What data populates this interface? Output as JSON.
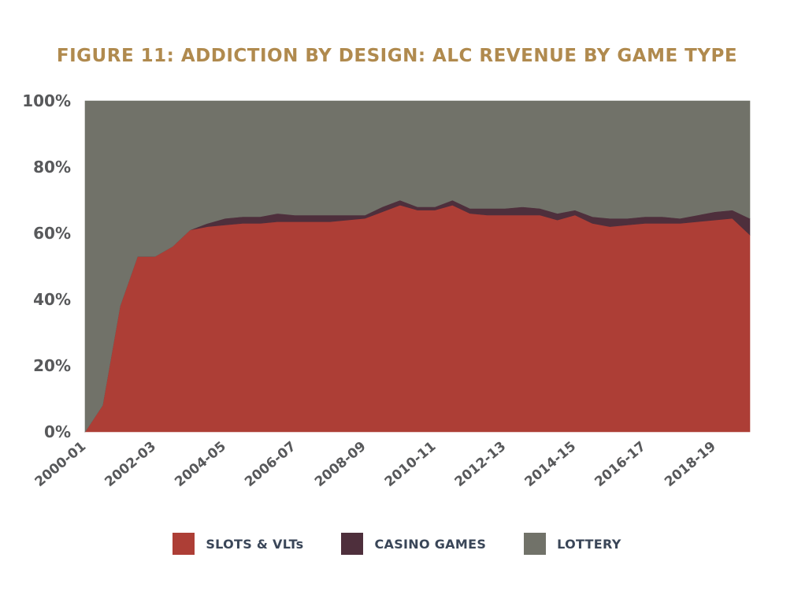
{
  "chart_data": {
    "type": "area",
    "stacked": true,
    "title": "FIGURE 11: ADDICTION BY DESIGN: ALC REVENUE BY GAME TYPE",
    "ylim": [
      0,
      100
    ],
    "y_ticks": [
      "0%",
      "20%",
      "40%",
      "60%",
      "80%",
      "100%"
    ],
    "x_tick_labels": [
      "2000-01",
      "2002-03",
      "2004-05",
      "2006-07",
      "2008-09",
      "2010-11",
      "2012-13",
      "2014-15",
      "2016-17",
      "2018-19"
    ],
    "x": [
      2000,
      2000.5,
      2001,
      2001.5,
      2002,
      2002.5,
      2003,
      2003.5,
      2004,
      2004.5,
      2005,
      2005.5,
      2006,
      2006.5,
      2007,
      2007.5,
      2008,
      2008.5,
      2009,
      2009.5,
      2010,
      2010.5,
      2011,
      2011.5,
      2012,
      2012.5,
      2013,
      2013.5,
      2014,
      2014.5,
      2015,
      2015.5,
      2016,
      2016.5,
      2017,
      2017.5,
      2018,
      2018.5,
      2019
    ],
    "series": [
      {
        "name": "SLOTS & VLTs",
        "color": "#ad3e36",
        "values": [
          0,
          8,
          38,
          53,
          53,
          56,
          61,
          62,
          62.5,
          63,
          63,
          63.5,
          63.5,
          63.5,
          63.5,
          64,
          64.5,
          66.5,
          68.5,
          67,
          67,
          68.5,
          66,
          65.5,
          65.5,
          65.5,
          65.5,
          64,
          65.5,
          63,
          62,
          62.5,
          63,
          63,
          63,
          63.5,
          64,
          64.5,
          59.5
        ]
      },
      {
        "name": "CASINO GAMES",
        "color": "#4e2f3c",
        "values": [
          0,
          0,
          0,
          0,
          0,
          0,
          0,
          1,
          2,
          2,
          2,
          2.5,
          2,
          2,
          2,
          1.5,
          1,
          1.5,
          1.5,
          1,
          1,
          1.5,
          1.5,
          2,
          2,
          2.5,
          2,
          2,
          1.5,
          2,
          2.5,
          2,
          2,
          2,
          1.5,
          2,
          2.5,
          2.5,
          5
        ]
      },
      {
        "name": "LOTTERY",
        "color": "#717269",
        "values": [
          100,
          92,
          62,
          47,
          47,
          44,
          39,
          37,
          35.5,
          35,
          35,
          34,
          34.5,
          34.5,
          34.5,
          34.5,
          34.5,
          32,
          30,
          32,
          32,
          30,
          32.5,
          32.5,
          32.5,
          32,
          32.5,
          34,
          33,
          35,
          35.5,
          35.5,
          35,
          35,
          35.5,
          34.5,
          33.5,
          33,
          35.5
        ]
      }
    ],
    "legend_position": "bottom-center",
    "grid": false
  }
}
